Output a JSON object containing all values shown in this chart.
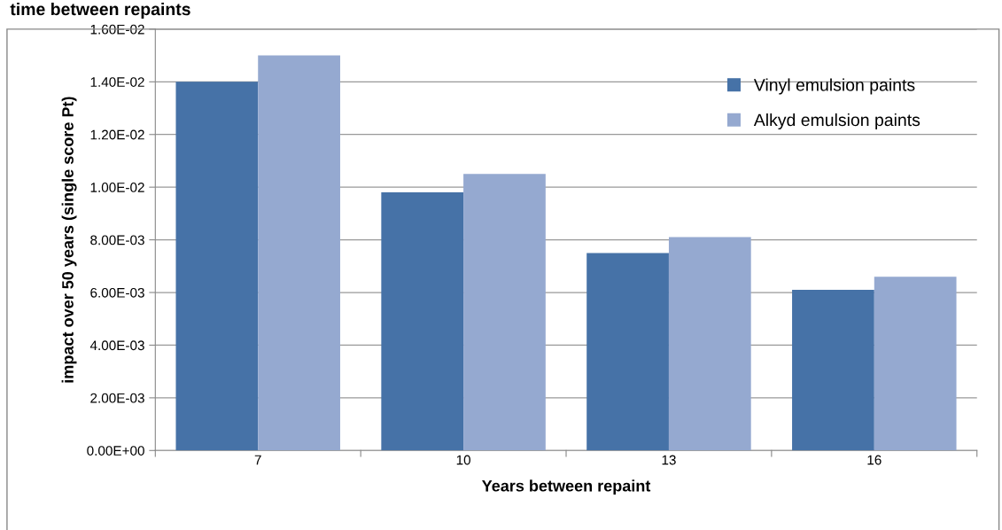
{
  "chart_data": {
    "type": "bar",
    "title": "time between repaints",
    "xlabel": "Years between repaint",
    "ylabel": "impact over 50 years (single score Pt)",
    "categories": [
      "7",
      "10",
      "13",
      "16"
    ],
    "series": [
      {
        "name": "Vinyl emulsion paints",
        "color": "#4672a7",
        "values": [
          0.014,
          0.0098,
          0.0075,
          0.0061
        ]
      },
      {
        "name": "Alkyd emulsion paints",
        "color": "#95a9d0",
        "values": [
          0.015,
          0.0105,
          0.0081,
          0.0066
        ]
      }
    ],
    "ylim": [
      0,
      0.016
    ],
    "yticks": [
      {
        "value": 0,
        "label": "0.00E+00"
      },
      {
        "value": 0.002,
        "label": "2.00E-03"
      },
      {
        "value": 0.004,
        "label": "4.00E-03"
      },
      {
        "value": 0.006,
        "label": "6.00E-03"
      },
      {
        "value": 0.008,
        "label": "8.00E-03"
      },
      {
        "value": 0.01,
        "label": "1.00E-02"
      },
      {
        "value": 0.012,
        "label": "1.20E-02"
      },
      {
        "value": 0.014,
        "label": "1.40E-02"
      },
      {
        "value": 0.016,
        "label": "1.60E-02"
      }
    ],
    "grid": "y",
    "legend": "top right"
  }
}
